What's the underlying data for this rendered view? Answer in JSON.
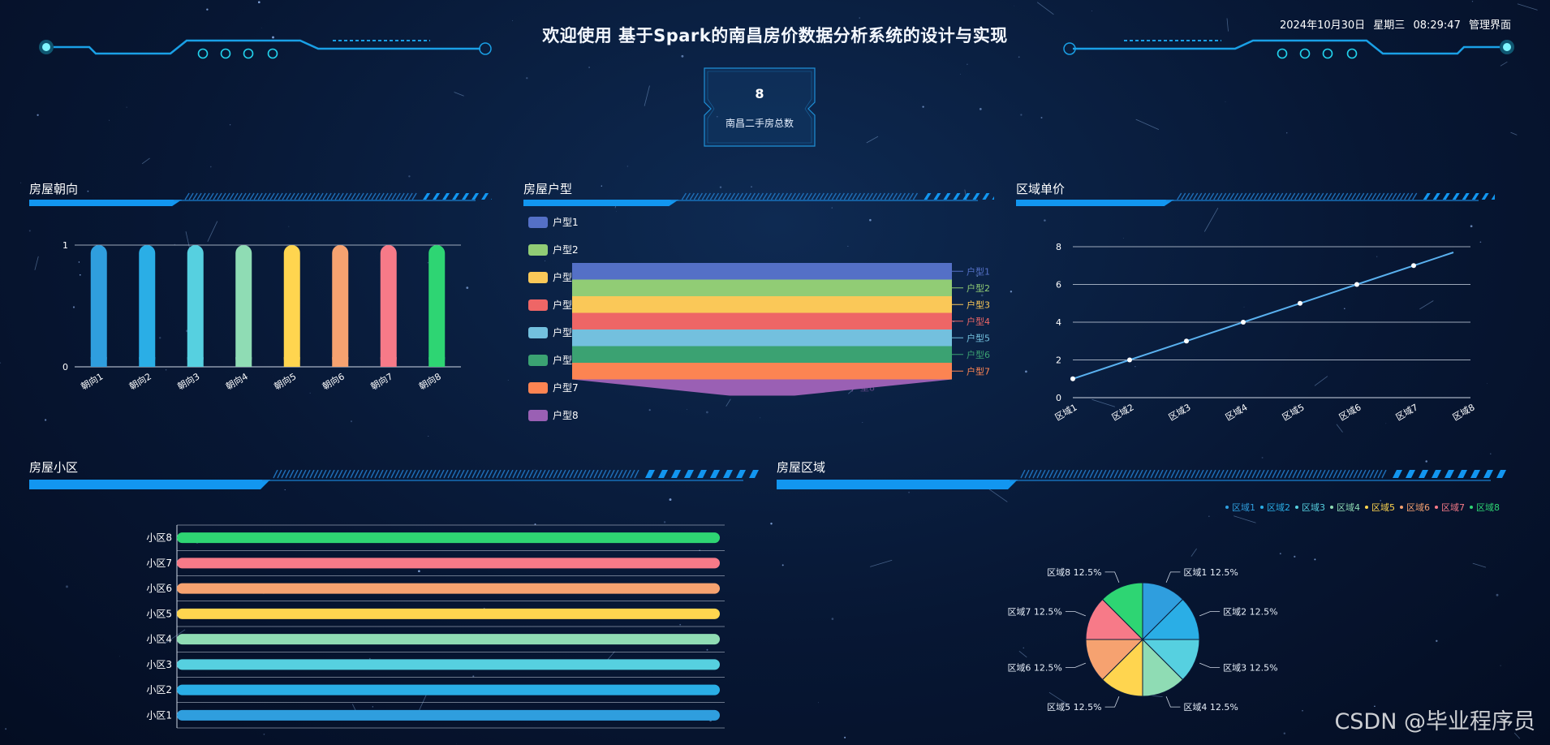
{
  "header": {
    "title": "欢迎使用 基于Spark的南昌房价数据分析系统的设计与实现",
    "date": "2024年10月30日",
    "weekday": "星期三",
    "time": "08:29:47",
    "admin_link": "管理界面"
  },
  "stat": {
    "value": "8",
    "label": "南昌二手房总数"
  },
  "panels": {
    "orientation": {
      "title": "房屋朝向"
    },
    "house_type": {
      "title": "房屋户型"
    },
    "district_price": {
      "title": "区域单价"
    },
    "community": {
      "title": "房屋小区"
    },
    "district": {
      "title": "房屋区域"
    }
  },
  "watermark": "CSDN @毕业程序员",
  "chart_data": [
    {
      "id": "orientation",
      "type": "bar",
      "categories": [
        "朝向1",
        "朝向2",
        "朝向3",
        "朝向4",
        "朝向5",
        "朝向6",
        "朝向7",
        "朝向8"
      ],
      "values": [
        1,
        1,
        1,
        1,
        1,
        1,
        1,
        1
      ],
      "ylim": [
        0,
        1
      ],
      "yticks": [
        "0",
        "1"
      ],
      "colors": [
        "#2f9ede",
        "#2aaee6",
        "#56d0e0",
        "#8fdcb4",
        "#ffd54f",
        "#f6a270",
        "#f77a88",
        "#2ed573"
      ]
    },
    {
      "id": "house_type",
      "type": "funnel",
      "legend": [
        "户型1",
        "户型2",
        "户型3",
        "户型4",
        "户型5",
        "户型6",
        "户型7",
        "户型8"
      ],
      "values": [
        1,
        1,
        1,
        1,
        1,
        1,
        1,
        1
      ],
      "colors": [
        "#5470c6",
        "#91cc75",
        "#fac858",
        "#ee6666",
        "#73c0de",
        "#3ba272",
        "#fc8452",
        "#9a60b4"
      ]
    },
    {
      "id": "district_price",
      "type": "line",
      "categories": [
        "区域1",
        "区域2",
        "区域3",
        "区域4",
        "区域5",
        "区域6",
        "区域7",
        "区域8"
      ],
      "values": [
        1,
        2,
        3,
        4,
        5,
        6,
        7,
        8
      ],
      "ylim": [
        0,
        8
      ],
      "yticks": [
        "0",
        "2",
        "4",
        "6",
        "8"
      ],
      "color": "#5ab1ef"
    },
    {
      "id": "community",
      "type": "bar",
      "orientation": "horizontal",
      "categories": [
        "小区1",
        "小区2",
        "小区3",
        "小区4",
        "小区5",
        "小区6",
        "小区7",
        "小区8"
      ],
      "values": [
        1,
        1,
        1,
        1,
        1,
        1,
        1,
        1
      ],
      "xlim": [
        0,
        1
      ],
      "xticks": [
        "0",
        "1"
      ],
      "colors": [
        "#2f9ede",
        "#2aaee6",
        "#56d0e0",
        "#8fdcb4",
        "#ffd54f",
        "#f6a270",
        "#f77a88",
        "#2ed573"
      ]
    },
    {
      "id": "district",
      "type": "pie",
      "legend": [
        "区域1",
        "区域2",
        "区域3",
        "区域4",
        "区域5",
        "区域6",
        "区域7",
        "区域8"
      ],
      "values": [
        1,
        1,
        1,
        1,
        1,
        1,
        1,
        1
      ],
      "labels": [
        "区域1 12.5%",
        "区域2 12.5%",
        "区域3 12.5%",
        "区域4 12.5%",
        "区域5 12.5%",
        "区域6 12.5%",
        "区域7 12.5%",
        "区域8 12.5%"
      ],
      "colors": [
        "#2f9ede",
        "#2aaee6",
        "#56d0e0",
        "#8fdcb4",
        "#ffd54f",
        "#f6a270",
        "#f77a88",
        "#2ed573"
      ]
    }
  ]
}
